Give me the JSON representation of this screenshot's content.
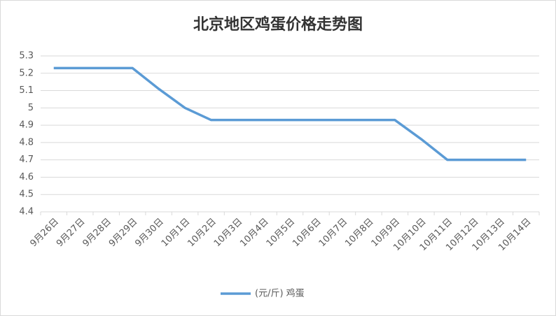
{
  "chart_data": {
    "type": "line",
    "title": "北京地区鸡蛋价格走势图",
    "categories": [
      "9月26日",
      "9月27日",
      "9月28日",
      "9月29日",
      "9月30日",
      "10月1日",
      "10月2日",
      "10月3日",
      "10月4日",
      "10月5日",
      "10月6日",
      "10月7日",
      "10月8日",
      "10月9日",
      "10月10日",
      "10月11日",
      "10月12日",
      "10月13日",
      "10月14日"
    ],
    "series": [
      {
        "name": "(元/斤) 鸡蛋",
        "color": "#5b9bd5",
        "values": [
          5.23,
          5.23,
          5.23,
          5.23,
          5.11,
          5.0,
          4.93,
          4.93,
          4.93,
          4.93,
          4.93,
          4.93,
          4.93,
          4.93,
          4.82,
          4.7,
          4.7,
          4.7,
          4.7
        ]
      }
    ],
    "ylim": [
      4.4,
      5.3
    ],
    "yticks": [
      4.4,
      4.5,
      4.6,
      4.7,
      4.8,
      4.9,
      5,
      5.1,
      5.2,
      5.3
    ],
    "grid": true
  }
}
